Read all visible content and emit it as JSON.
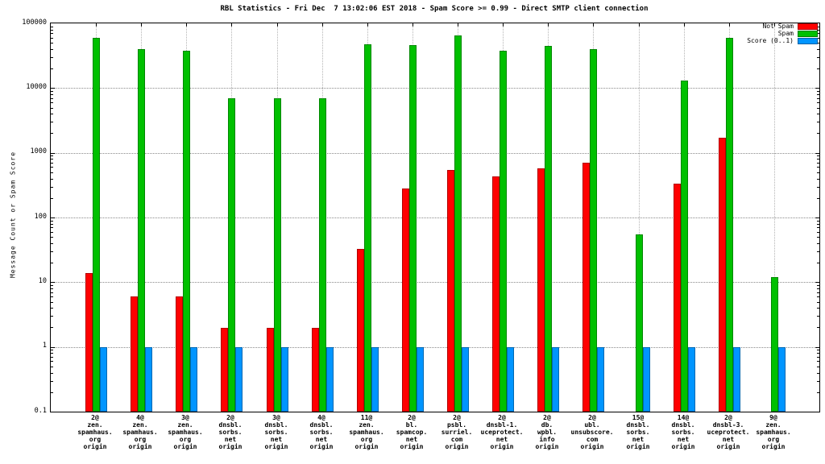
{
  "chart": {
    "title": "RBL Statistics - Fri Dec  7 13:02:06 EST 2018 - Spam Score >= 0.99 - Direct SMTP client connection",
    "ylabel": "Message Count or Spam Score"
  },
  "chart_data": {
    "type": "bar",
    "title": "RBL Statistics - Fri Dec  7 13:02:06 EST 2018 - Spam Score >= 0.99 - Direct SMTP client connection",
    "ylabel": "Message Count or Spam Score",
    "xlabel": "",
    "y_scale": "log",
    "ylim": [
      0.1,
      100000
    ],
    "y_ticks": [
      "0.1",
      "1",
      "10",
      "100",
      "1000",
      "10000",
      "100000"
    ],
    "grid": true,
    "legend_position": "top-right",
    "categories": [
      [
        "2@",
        "zen.",
        "spamhaus.",
        "org",
        "origin"
      ],
      [
        "4@",
        "zen.",
        "spamhaus.",
        "org",
        "origin"
      ],
      [
        "3@",
        "zen.",
        "spamhaus.",
        "org",
        "origin"
      ],
      [
        "2@",
        "dnsbl.",
        "sorbs.",
        "net",
        "origin"
      ],
      [
        "3@",
        "dnsbl.",
        "sorbs.",
        "net",
        "origin"
      ],
      [
        "4@",
        "dnsbl.",
        "sorbs.",
        "net",
        "origin"
      ],
      [
        "11@",
        "zen.",
        "spamhaus.",
        "org",
        "origin"
      ],
      [
        "2@",
        "bl.",
        "spamcop.",
        "net",
        "origin"
      ],
      [
        "2@",
        "psbl.",
        "surriel.",
        "com",
        "origin"
      ],
      [
        "2@",
        "dnsbl-1.",
        "uceprotect.",
        "net",
        "origin"
      ],
      [
        "2@",
        "db.",
        "wpbl.",
        "info",
        "origin"
      ],
      [
        "2@",
        "ubl.",
        "unsubscore.",
        "com",
        "origin"
      ],
      [
        "15@",
        "dnsbl.",
        "sorbs.",
        "net",
        "origin"
      ],
      [
        "14@",
        "dnsbl.",
        "sorbs.",
        "net",
        "origin"
      ],
      [
        "2@",
        "dnsbl-3.",
        "uceprotect.",
        "net",
        "origin"
      ],
      [
        "9@",
        "zen.",
        "spamhaus.",
        "org",
        "origin"
      ]
    ],
    "series": [
      {
        "name": "Not Spam",
        "color": "#ff0000",
        "values": [
          14,
          6,
          6,
          2,
          2,
          2,
          33,
          280,
          550,
          430,
          580,
          700,
          null,
          330,
          1700,
          null
        ]
      },
      {
        "name": "Spam",
        "color": "#00c000",
        "values": [
          60000,
          40000,
          38000,
          7000,
          7000,
          7000,
          48000,
          46000,
          65000,
          38000,
          45000,
          40000,
          55,
          13000,
          60000,
          12
        ]
      },
      {
        "name": "Score (0..1)",
        "color": "#0095ff",
        "values": [
          1,
          1,
          1,
          1,
          1,
          1,
          1,
          1,
          1,
          1,
          1,
          1,
          1,
          1,
          1,
          1
        ]
      }
    ]
  }
}
